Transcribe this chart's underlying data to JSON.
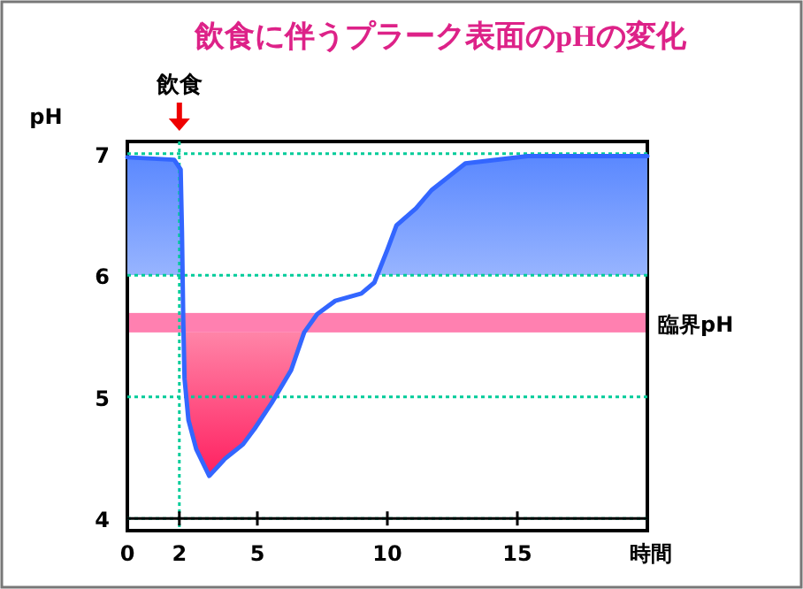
{
  "chart_data": {
    "type": "line",
    "title": "飲食に伴うプラーク表面のpHの変化",
    "xlabel": "時間",
    "ylabel": "pH",
    "xlim": [
      0,
      20
    ],
    "xticks": [
      0,
      2,
      5,
      10,
      15
    ],
    "ylim": [
      3.9,
      7.1
    ],
    "yticks": [
      4,
      5,
      6,
      7
    ],
    "grid": "y",
    "series": [
      {
        "color": "#3366ff",
        "x": [
          0,
          1.8,
          2.05,
          2.1,
          2.15,
          2.2,
          2.35,
          2.65,
          3.15,
          3.75,
          4.45,
          4.9,
          5.55,
          6.3,
          6.8,
          7.3,
          8.0,
          9.0,
          9.5,
          10.0,
          10.35,
          11.1,
          11.7,
          13.0,
          15.4,
          20
        ],
        "values": [
          6.97,
          6.95,
          6.87,
          6.36,
          5.63,
          5.15,
          4.81,
          4.57,
          4.35,
          4.49,
          4.61,
          4.74,
          4.95,
          5.22,
          5.53,
          5.68,
          5.79,
          5.85,
          5.94,
          6.21,
          6.41,
          6.55,
          6.7,
          6.92,
          6.98,
          6.98
        ]
      }
    ],
    "ref_lines": [
      {
        "axis": "x",
        "value": 2,
        "label": "飲食",
        "color": "#00cc99",
        "line_style": "dotted"
      },
      {
        "axis": "y",
        "value": 4,
        "color": "#000000",
        "line_style": "solid"
      }
    ],
    "bands": [
      {
        "axis": "y",
        "from": 5.53,
        "to": 5.69,
        "label": "臨界pH",
        "color": "#ff80b0"
      }
    ]
  }
}
